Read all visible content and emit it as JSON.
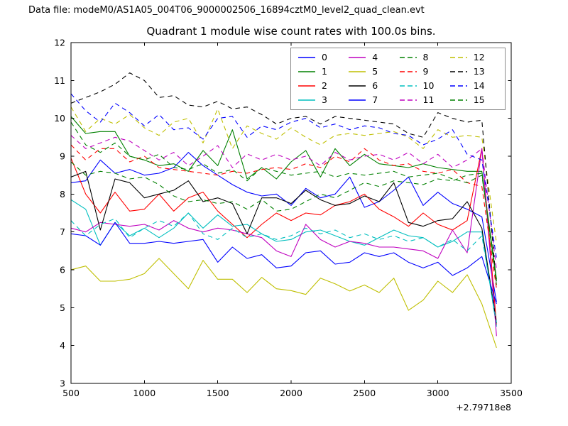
{
  "figure": {
    "header": "Data file: modeM0/AS1A05_004T06_9000002506_16894cztM0_level2_quad_clean.evt",
    "title": "Quadrant 1 module wise count rates with 100.0s bins.",
    "offset_text": "+2.79718e8",
    "background": "#ffffff",
    "axis_color": "#000000",
    "legend_border_color": "#8a8a8a"
  },
  "chart_data": {
    "type": "line",
    "title": "Quadrant 1 module wise count rates with 100.0s bins.",
    "xlabel": "",
    "ylabel": "",
    "xlim": [
      500,
      3500
    ],
    "ylim": [
      3,
      12
    ],
    "x_ticks": [
      500,
      1000,
      1500,
      2000,
      2500,
      3000,
      3500
    ],
    "y_ticks": [
      3,
      4,
      5,
      6,
      7,
      8,
      9,
      10,
      11,
      12
    ],
    "x_offset_text": "+2.79718e8",
    "grid": false,
    "legend_position": "upper right",
    "legend_columns": 4,
    "x": [
      500,
      600,
      700,
      800,
      900,
      1000,
      1100,
      1200,
      1300,
      1400,
      1500,
      1600,
      1700,
      1800,
      1900,
      2000,
      2100,
      2200,
      2300,
      2400,
      2500,
      2600,
      2700,
      2800,
      2900,
      3000,
      3100,
      3200,
      3300,
      3400
    ],
    "series": [
      {
        "name": "0",
        "color": "#0000ff",
        "linestyle": "solid",
        "values": [
          8.3,
          8.35,
          8.9,
          8.55,
          8.65,
          8.5,
          8.55,
          8.7,
          9.1,
          8.75,
          8.5,
          8.25,
          8.05,
          7.95,
          8.0,
          7.7,
          8.15,
          7.9,
          8.0,
          8.45,
          7.65,
          7.8,
          8.1,
          8.45,
          7.7,
          8.05,
          7.75,
          7.6,
          7.4,
          5.15
        ]
      },
      {
        "name": "1",
        "color": "#008000",
        "linestyle": "solid",
        "values": [
          10.05,
          9.6,
          9.65,
          9.65,
          9.0,
          8.9,
          8.75,
          8.8,
          8.6,
          9.15,
          8.75,
          9.7,
          8.4,
          8.7,
          8.4,
          8.85,
          9.15,
          8.45,
          9.2,
          8.75,
          9.05,
          8.8,
          8.75,
          8.7,
          8.8,
          8.7,
          8.65,
          8.6,
          8.6,
          5.75
        ]
      },
      {
        "name": "2",
        "color": "#ff0000",
        "linestyle": "solid",
        "values": [
          8.95,
          8.0,
          7.5,
          8.05,
          7.55,
          7.6,
          8.0,
          7.55,
          7.9,
          8.05,
          7.55,
          7.2,
          6.85,
          7.2,
          7.5,
          7.3,
          7.5,
          7.45,
          7.7,
          7.8,
          8.0,
          7.6,
          7.4,
          7.15,
          7.5,
          7.2,
          7.05,
          7.3,
          9.2,
          4.55
        ]
      },
      {
        "name": "3",
        "color": "#00bfbf",
        "linestyle": "solid",
        "values": [
          7.85,
          7.6,
          6.65,
          7.25,
          6.9,
          7.1,
          6.85,
          7.1,
          7.5,
          7.1,
          7.45,
          7.15,
          7.2,
          6.95,
          6.75,
          6.8,
          7.0,
          7.05,
          6.9,
          6.75,
          6.65,
          6.85,
          7.05,
          6.9,
          6.85,
          6.6,
          6.75,
          7.0,
          7.0,
          4.5
        ]
      },
      {
        "name": "4",
        "color": "#bf00bf",
        "linestyle": "solid",
        "values": [
          7.1,
          7.0,
          7.25,
          7.2,
          7.15,
          7.2,
          7.05,
          7.3,
          7.1,
          7.0,
          7.1,
          7.05,
          6.95,
          6.85,
          6.5,
          6.35,
          7.2,
          6.8,
          6.6,
          6.75,
          6.7,
          6.6,
          6.6,
          6.55,
          6.5,
          6.3,
          7.05,
          6.45,
          9.2,
          4.25
        ]
      },
      {
        "name": "5",
        "color": "#bfbf00",
        "linestyle": "solid",
        "values": [
          6.0,
          6.1,
          5.7,
          5.7,
          5.75,
          5.9,
          6.3,
          5.9,
          5.5,
          6.25,
          5.75,
          5.75,
          5.4,
          5.8,
          5.5,
          5.45,
          5.35,
          5.78,
          5.63,
          5.44,
          5.6,
          5.4,
          5.78,
          4.93,
          5.2,
          5.7,
          5.4,
          5.87,
          5.1,
          3.94
        ]
      },
      {
        "name": "6",
        "color": "#000000",
        "linestyle": "solid",
        "values": [
          8.45,
          8.6,
          7.05,
          8.4,
          8.3,
          7.9,
          8.0,
          8.1,
          8.35,
          7.8,
          7.9,
          7.75,
          6.95,
          7.9,
          7.9,
          7.75,
          8.1,
          7.85,
          7.7,
          7.75,
          7.95,
          7.8,
          8.3,
          7.25,
          7.15,
          7.3,
          7.35,
          7.8,
          7.1,
          4.6
        ]
      },
      {
        "name": "7",
        "color": "#0000ff",
        "linestyle": "solid",
        "values": [
          6.95,
          6.9,
          6.65,
          7.25,
          6.7,
          6.7,
          6.75,
          6.7,
          6.75,
          6.8,
          6.2,
          6.6,
          6.3,
          6.4,
          6.05,
          6.1,
          6.45,
          6.5,
          6.15,
          6.2,
          6.45,
          6.35,
          6.45,
          6.2,
          6.05,
          6.2,
          5.85,
          6.05,
          6.35,
          5.1
        ]
      },
      {
        "name": "8",
        "color": "#008000",
        "linestyle": "dashed",
        "values": [
          8.85,
          8.5,
          8.6,
          8.55,
          8.4,
          8.45,
          8.25,
          7.95,
          7.8,
          7.85,
          7.75,
          7.8,
          7.6,
          7.85,
          7.55,
          7.6,
          7.8,
          8.0,
          7.9,
          8.1,
          8.3,
          8.2,
          8.35,
          8.3,
          8.25,
          8.4,
          8.35,
          8.5,
          8.55,
          5.6
        ]
      },
      {
        "name": "9",
        "color": "#ff0000",
        "linestyle": "dashed",
        "values": [
          9.3,
          8.9,
          9.2,
          9.2,
          8.85,
          9.0,
          8.7,
          8.65,
          8.6,
          8.55,
          8.5,
          8.6,
          8.55,
          8.65,
          8.7,
          8.65,
          8.8,
          8.7,
          9.0,
          8.85,
          9.2,
          8.9,
          8.75,
          8.8,
          8.6,
          8.55,
          8.65,
          8.3,
          8.2,
          5.5
        ]
      },
      {
        "name": "10",
        "color": "#00bfbf",
        "linestyle": "dashed",
        "values": [
          7.3,
          6.9,
          7.2,
          7.35,
          6.85,
          7.1,
          7.3,
          7.15,
          7.5,
          6.95,
          6.8,
          7.1,
          6.85,
          6.95,
          6.8,
          6.9,
          7.1,
          6.95,
          7.05,
          6.85,
          6.95,
          6.8,
          6.9,
          6.75,
          6.85,
          6.6,
          6.8,
          6.5,
          6.9,
          4.6
        ]
      },
      {
        "name": "11",
        "color": "#bf00bf",
        "linestyle": "dashed",
        "values": [
          9.55,
          9.2,
          9.35,
          9.5,
          9.4,
          9.15,
          8.9,
          9.1,
          8.75,
          9.0,
          9.28,
          8.7,
          9.06,
          8.9,
          9.05,
          8.9,
          9.0,
          8.75,
          9.1,
          8.9,
          9.0,
          9.05,
          8.9,
          9.1,
          8.8,
          9.05,
          8.7,
          8.9,
          9.2,
          6.0
        ]
      },
      {
        "name": "12",
        "color": "#bfbf00",
        "linestyle": "dashed",
        "values": [
          10.3,
          9.65,
          10.0,
          9.85,
          10.1,
          9.75,
          9.55,
          9.9,
          10.0,
          9.35,
          10.25,
          9.2,
          9.8,
          9.6,
          9.45,
          9.75,
          9.5,
          9.3,
          9.55,
          9.6,
          9.55,
          9.6,
          9.65,
          9.5,
          9.2,
          9.7,
          9.5,
          9.55,
          9.5,
          6.7
        ]
      },
      {
        "name": "13",
        "color": "#000000",
        "linestyle": "dashed",
        "values": [
          10.4,
          10.55,
          10.7,
          10.9,
          11.2,
          11.0,
          10.55,
          10.6,
          10.35,
          10.3,
          10.45,
          10.25,
          10.3,
          10.1,
          9.85,
          10.0,
          10.05,
          9.85,
          10.05,
          10.0,
          9.95,
          9.9,
          9.85,
          9.6,
          9.5,
          10.15,
          10.0,
          9.9,
          9.95,
          5.6
        ]
      },
      {
        "name": "14",
        "color": "#0000ff",
        "linestyle": "dashed",
        "values": [
          10.65,
          10.2,
          9.9,
          10.4,
          10.15,
          9.8,
          10.1,
          9.7,
          9.75,
          9.45,
          10.0,
          10.05,
          9.5,
          9.8,
          9.7,
          9.9,
          10.0,
          9.75,
          9.85,
          9.7,
          9.8,
          9.75,
          9.6,
          9.55,
          9.3,
          9.45,
          9.7,
          9.05,
          8.9,
          6.3
        ]
      },
      {
        "name": "15",
        "color": "#008000",
        "linestyle": "dashed",
        "values": [
          9.9,
          9.3,
          9.1,
          9.35,
          9.0,
          8.9,
          9.05,
          8.7,
          8.65,
          8.8,
          8.55,
          8.65,
          8.35,
          8.7,
          8.6,
          8.5,
          8.55,
          8.6,
          8.45,
          8.55,
          8.5,
          8.55,
          8.6,
          8.45,
          8.5,
          8.55,
          8.4,
          8.3,
          8.5,
          5.7
        ]
      }
    ]
  }
}
